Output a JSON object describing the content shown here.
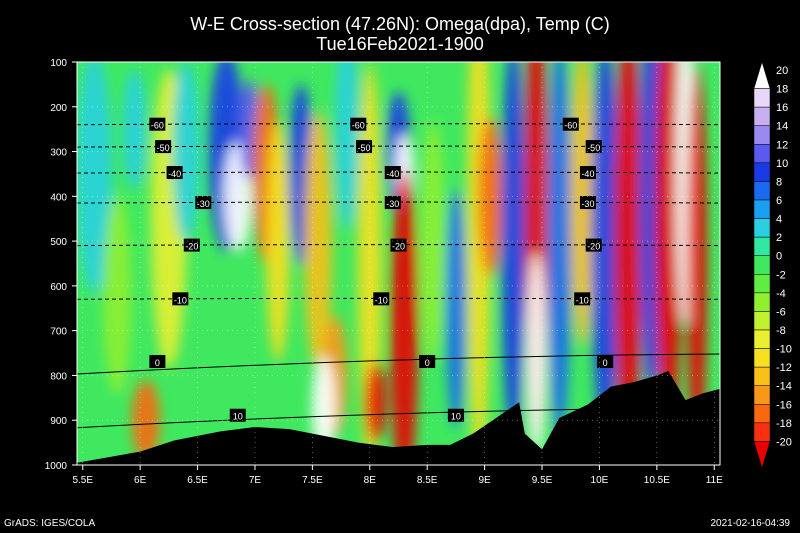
{
  "chart_data": {
    "type": "heatmap",
    "title": "W-E Cross-section (47.26N): Omega(dpa), Temp (C)",
    "subtitle": "Tue16Feb2021-1900",
    "x_ticks": [
      "5.5E",
      "6E",
      "6.5E",
      "7E",
      "7.5E",
      "8E",
      "8.5E",
      "9E",
      "9.5E",
      "10E",
      "10.5E",
      "11E"
    ],
    "x_values": [
      5.5,
      6,
      6.5,
      7,
      7.5,
      8,
      8.5,
      9,
      9.5,
      10,
      10.5,
      11
    ],
    "xlim": [
      5.45,
      11.05
    ],
    "y_ticks": [
      "100",
      "200",
      "300",
      "400",
      "500",
      "600",
      "700",
      "800",
      "900",
      "1000"
    ],
    "y_values": [
      100,
      200,
      300,
      400,
      500,
      600,
      700,
      800,
      900,
      1000
    ],
    "ylim": [
      100,
      1000
    ],
    "y_inverted": true,
    "colorbar": {
      "levels": [
        "20",
        "18",
        "16",
        "14",
        "12",
        "10",
        "8",
        "6",
        "4",
        "2",
        "0",
        "-2",
        "-4",
        "-6",
        "-8",
        "-10",
        "-12",
        "-14",
        "-16",
        "-18",
        "-20"
      ],
      "colors": [
        "#ffffff",
        "#e8d8f8",
        "#c8b0f0",
        "#9a8af0",
        "#5a5af0",
        "#1a3ae8",
        "#1a6af0",
        "#1aa0f0",
        "#28d0e0",
        "#30e8a0",
        "#40e860",
        "#60ec40",
        "#90f030",
        "#c0f030",
        "#e8f030",
        "#f8e020",
        "#f8c018",
        "#f89818",
        "#f86810",
        "#f83010",
        "#e80000"
      ]
    },
    "temperature_contours": [
      {
        "label": "-60",
        "pressure": 240,
        "label_x": [
          6.15,
          7.9,
          9.75
        ]
      },
      {
        "label": "-50",
        "pressure": 290,
        "label_x": [
          6.2,
          7.95,
          9.95
        ]
      },
      {
        "label": "-40",
        "pressure": 348,
        "label_x": [
          6.3,
          8.2,
          9.9
        ]
      },
      {
        "label": "-30",
        "pressure": 415,
        "label_x": [
          6.55,
          8.2,
          9.9
        ]
      },
      {
        "label": "-20",
        "pressure": 510,
        "label_x": [
          6.45,
          8.25,
          9.95
        ]
      },
      {
        "label": "-10",
        "pressure": 630,
        "label_x": [
          6.35,
          8.1,
          9.85
        ]
      },
      {
        "label": "0",
        "pressure": 770,
        "label_x": [
          6.15,
          8.5,
          10.05
        ]
      },
      {
        "label": "10",
        "pressure": 890,
        "label_x": [
          6.85,
          8.75
        ]
      }
    ],
    "footer_left": "GrADS: IGES/COLA",
    "footer_right": "2021-02-16-04:39",
    "series": [],
    "legend": "colorbar-right"
  }
}
